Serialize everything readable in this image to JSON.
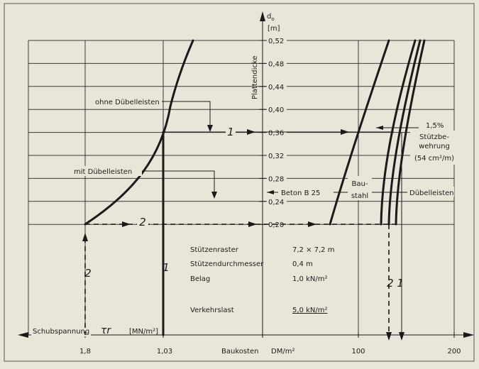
{
  "axis": {
    "y_symbol": "d",
    "y_subscript": "o",
    "y_unit": "[m]",
    "y_title": "Plattendicke",
    "y_ticks": [
      "0,52",
      "0,48",
      "0,44",
      "0,40",
      "0,36",
      "0,32",
      "0,28",
      "0,24",
      "0,20"
    ],
    "x_left_label": "Schubspannung",
    "x_left_symbol": "τr",
    "x_left_unit": "[MN/m²]",
    "x_left_ticks": [
      "1,8",
      "1,03"
    ],
    "x_right_label": "Baukosten",
    "x_right_unit": "DM/m²",
    "x_right_ticks": [
      "100",
      "200"
    ]
  },
  "labels": {
    "ohne": "ohne Dübelleisten",
    "mit": "mit Dübelleisten",
    "pct": "1,5%",
    "stuetz_lines": [
      "Stützbe-",
      "wehrung",
      "(54 cm²/m)"
    ],
    "beton": "Beton B 25",
    "baustahl_lines": [
      "Bau-",
      "stahl"
    ],
    "duebel": "Dübelleisten",
    "path_1": "1",
    "path_2": "2",
    "bottom_2": "2",
    "bottom_1": "1",
    "bottom_21": "2 1"
  },
  "parameters": [
    {
      "name": "Stützenraster",
      "value": "7,2 × 7,2 m"
    },
    {
      "name": "Stützendurchmesser",
      "value": "0,4 m"
    },
    {
      "name": "Belag",
      "value": "1,0 kN/m²"
    },
    {
      "name": "Verkehrslast",
      "value": "5,0 kN/m²"
    }
  ]
}
